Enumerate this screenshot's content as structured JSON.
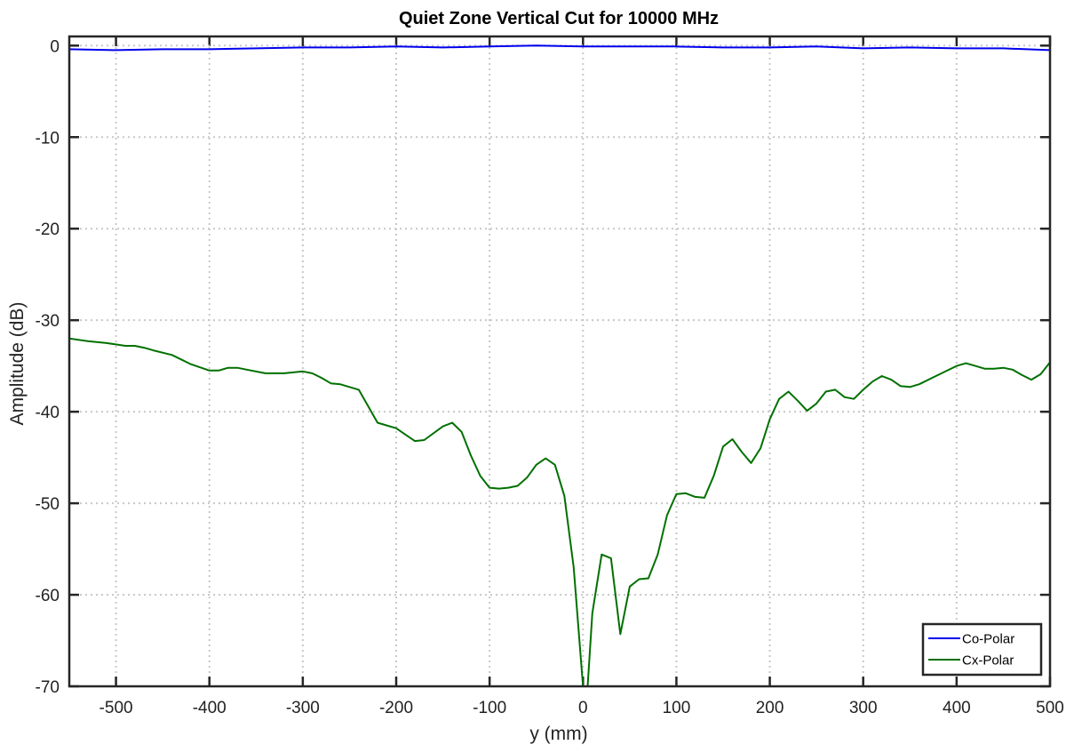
{
  "chart_data": {
    "type": "line",
    "title": "Quiet Zone Vertical Cut for 10000 MHz",
    "xlabel": "y (mm)",
    "ylabel": "Amplitude (dB)",
    "xlim": [
      -550,
      500
    ],
    "ylim": [
      -70,
      1
    ],
    "xticks": [
      -500,
      -400,
      -300,
      -200,
      -100,
      0,
      100,
      200,
      300,
      400,
      500
    ],
    "yticks": [
      0,
      -10,
      -20,
      -30,
      -40,
      -50,
      -60,
      -70
    ],
    "grid": true,
    "legend_position": "bottom-right",
    "series": [
      {
        "name": "Co-Polar",
        "color": "#0000ee",
        "x": [
          -550,
          -500,
          -450,
          -400,
          -350,
          -300,
          -250,
          -200,
          -150,
          -100,
          -50,
          0,
          50,
          100,
          150,
          200,
          250,
          300,
          350,
          400,
          450,
          500
        ],
        "y": [
          -0.4,
          -0.5,
          -0.4,
          -0.4,
          -0.3,
          -0.2,
          -0.2,
          -0.1,
          -0.2,
          -0.1,
          0.0,
          -0.1,
          -0.1,
          -0.1,
          -0.2,
          -0.2,
          -0.1,
          -0.3,
          -0.2,
          -0.3,
          -0.3,
          -0.5
        ]
      },
      {
        "name": "Cx-Polar",
        "color": "#007000",
        "x": [
          -550,
          -530,
          -510,
          -490,
          -480,
          -470,
          -460,
          -440,
          -420,
          -400,
          -390,
          -380,
          -370,
          -360,
          -340,
          -320,
          -300,
          -290,
          -280,
          -270,
          -260,
          -240,
          -220,
          -200,
          -190,
          -180,
          -170,
          -150,
          -140,
          -130,
          -120,
          -110,
          -100,
          -90,
          -80,
          -70,
          -60,
          -50,
          -40,
          -30,
          -20,
          -10,
          0,
          5,
          10,
          20,
          30,
          40,
          50,
          60,
          70,
          80,
          90,
          100,
          110,
          120,
          130,
          140,
          150,
          160,
          170,
          180,
          190,
          200,
          210,
          220,
          230,
          240,
          250,
          260,
          270,
          280,
          290,
          300,
          310,
          320,
          330,
          340,
          350,
          360,
          380,
          400,
          410,
          420,
          430,
          440,
          450,
          460,
          470,
          480,
          490,
          500
        ],
        "y": [
          -32.0,
          -32.3,
          -32.5,
          -32.8,
          -32.8,
          -33.0,
          -33.3,
          -33.8,
          -34.8,
          -35.5,
          -35.5,
          -35.2,
          -35.2,
          -35.4,
          -35.8,
          -35.8,
          -35.6,
          -35.8,
          -36.3,
          -36.9,
          -37.0,
          -37.6,
          -41.2,
          -41.8,
          -42.5,
          -43.2,
          -43.1,
          -41.6,
          -41.2,
          -42.2,
          -44.8,
          -47.0,
          -48.3,
          -48.4,
          -48.3,
          -48.1,
          -47.2,
          -45.8,
          -45.1,
          -45.8,
          -49.2,
          -57.0,
          -70.0,
          -70.0,
          -62.0,
          -55.6,
          -56.0,
          -64.3,
          -59.1,
          -58.3,
          -58.2,
          -55.6,
          -51.3,
          -49.0,
          -48.9,
          -49.3,
          -49.4,
          -47.0,
          -43.8,
          -43.0,
          -44.4,
          -45.6,
          -44.0,
          -40.8,
          -38.6,
          -37.8,
          -38.8,
          -39.9,
          -39.1,
          -37.8,
          -37.6,
          -38.4,
          -38.6,
          -37.6,
          -36.7,
          -36.1,
          -36.5,
          -37.2,
          -37.3,
          -37.0,
          -36.0,
          -35.0,
          -34.7,
          -35.0,
          -35.3,
          -35.3,
          -35.2,
          -35.4,
          -36.0,
          -36.5,
          -35.9,
          -34.6
        ]
      }
    ]
  }
}
